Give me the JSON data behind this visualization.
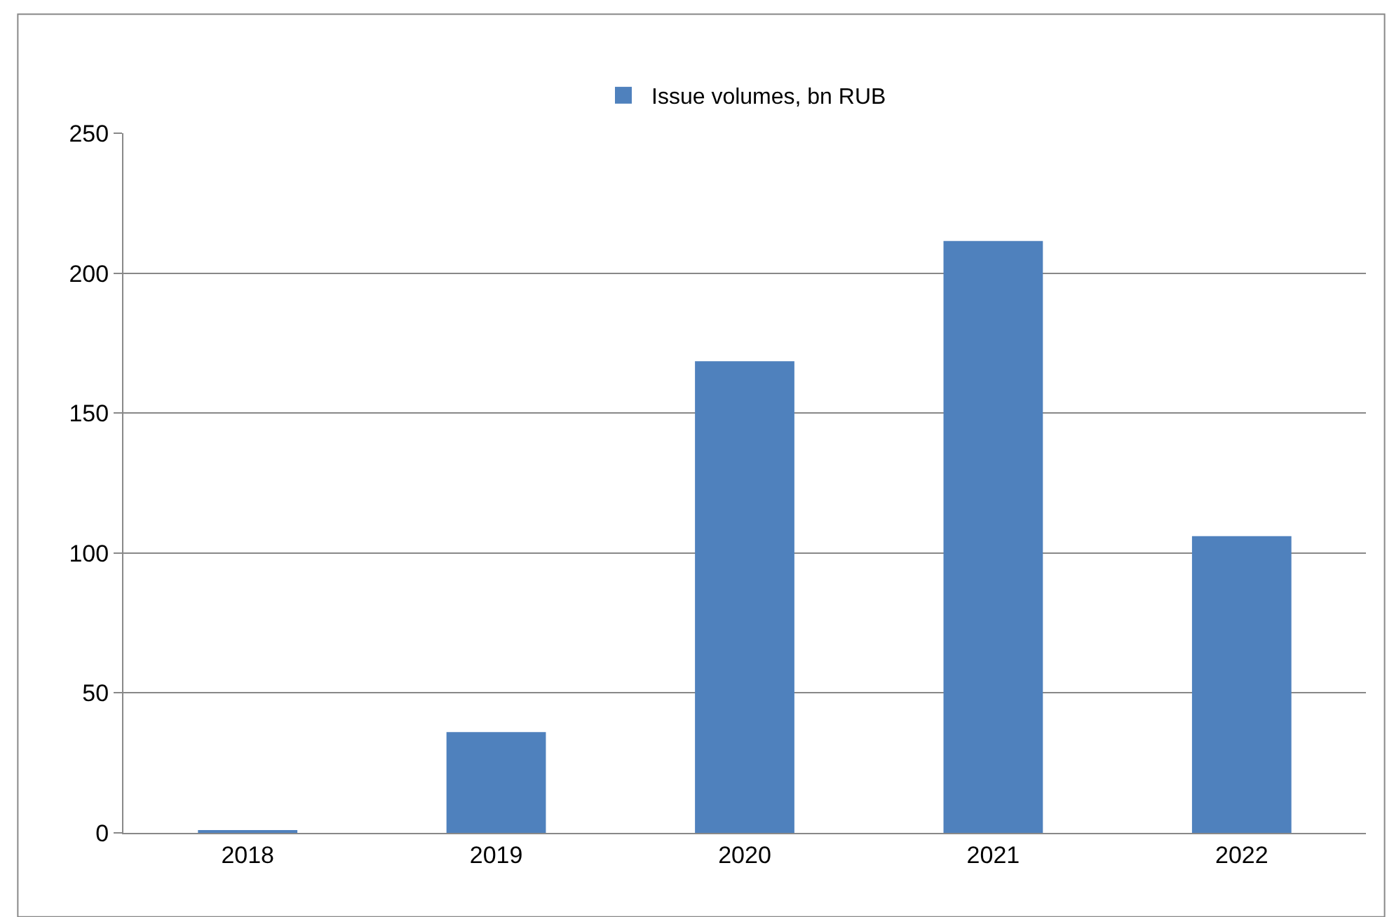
{
  "chart_data": {
    "type": "bar",
    "categories": [
      "2018",
      "2019",
      "2020",
      "2021",
      "2022"
    ],
    "series": [
      {
        "name": "Issue volumes, bn RUB",
        "color": "#4f81bd",
        "values": [
          1,
          36,
          168.5,
          211.5,
          106
        ]
      }
    ],
    "ylim": [
      0,
      250
    ],
    "yticks": [
      0,
      50,
      100,
      150,
      200,
      250
    ],
    "grid": "y",
    "legend": "top"
  }
}
